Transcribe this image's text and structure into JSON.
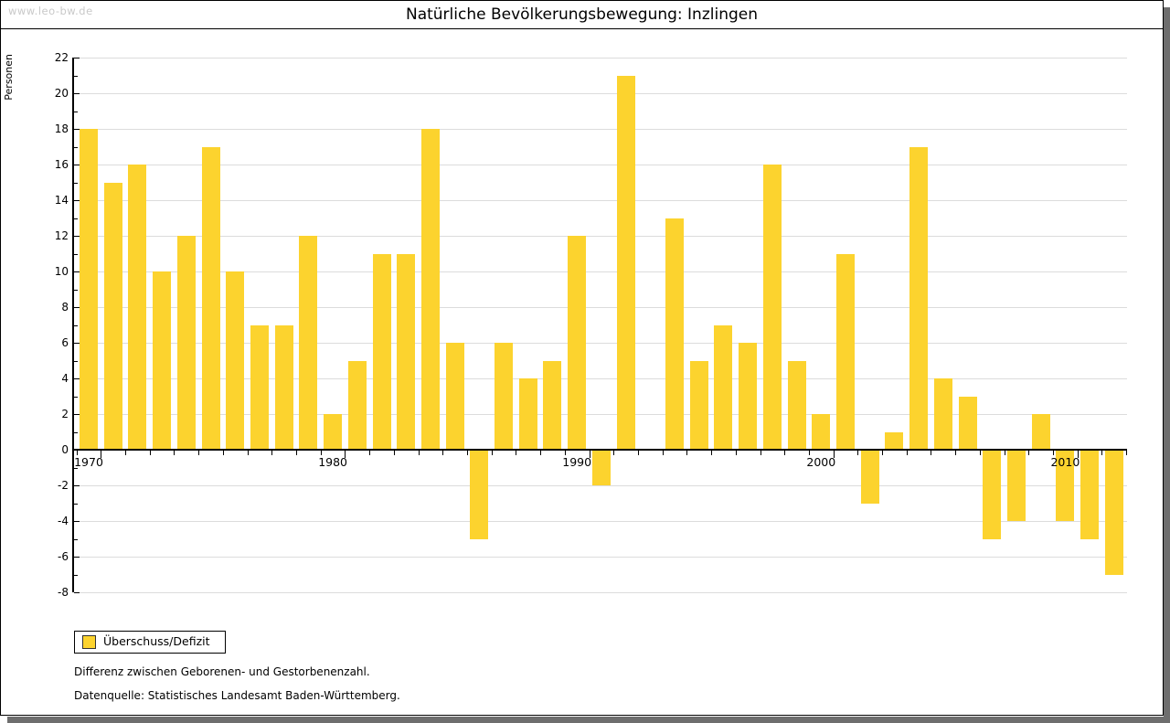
{
  "watermark": "www.leo-bw.de",
  "header": {
    "title": "Natürliche Bevölkerungsbewegung: Inzlingen"
  },
  "legend": {
    "label": "Überschuss/Defizit"
  },
  "footnotes": [
    "Differenz zwischen Geborenen- und Gestorbenenzahl.",
    "Datenquelle: Statistisches Landesamt Baden-Württemberg."
  ],
  "colors": {
    "bar": "#fcd32e",
    "grid": "#dcdcdc",
    "axis": "#000000",
    "watermark": "#c9c9c9",
    "shadow": "#6e6e6e"
  },
  "chart_data": {
    "type": "bar",
    "title": "Natürliche Bevölkerungsbewegung: Inzlingen",
    "xlabel": "",
    "ylabel": "Personen",
    "ylim": [
      -8,
      22
    ],
    "grid": true,
    "legend_position": "bottom-left",
    "categories": [
      1970,
      1971,
      1972,
      1973,
      1974,
      1975,
      1976,
      1977,
      1978,
      1979,
      1980,
      1981,
      1982,
      1983,
      1984,
      1985,
      1986,
      1987,
      1988,
      1989,
      1990,
      1991,
      1992,
      1993,
      1994,
      1995,
      1996,
      1997,
      1998,
      1999,
      2000,
      2001,
      2002,
      2003,
      2004,
      2005,
      2006,
      2007,
      2008,
      2009,
      2010,
      2011,
      2012
    ],
    "series": [
      {
        "name": "Überschuss/Defizit",
        "values": [
          18,
          15,
          16,
          10,
          12,
          17,
          10,
          7,
          7,
          12,
          2,
          5,
          11,
          11,
          18,
          6,
          -5,
          6,
          4,
          5,
          12,
          -2,
          21,
          0,
          13,
          5,
          7,
          6,
          16,
          5,
          2,
          11,
          -3,
          1,
          17,
          4,
          3,
          -5,
          -4,
          2,
          -4,
          -5,
          -7
        ]
      }
    ],
    "yticks": [
      22,
      20,
      18,
      16,
      14,
      12,
      10,
      8,
      6,
      4,
      2,
      0,
      -2,
      -4,
      -6,
      -8
    ],
    "xticks": [
      1970,
      1980,
      1990,
      2000,
      2010
    ]
  }
}
